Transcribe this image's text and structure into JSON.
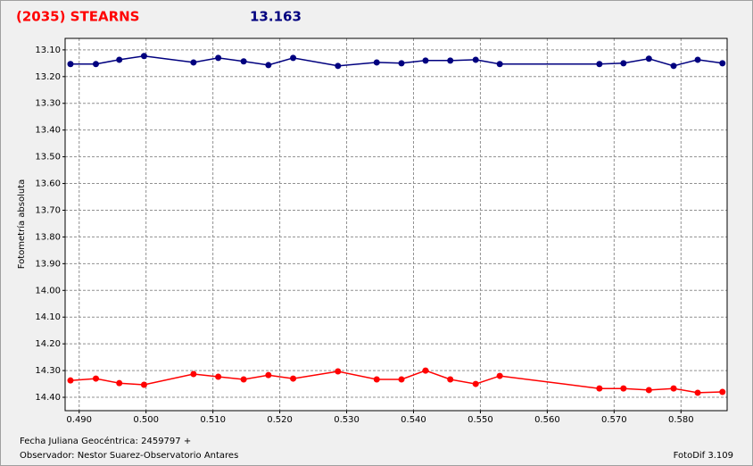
{
  "chart_data": {
    "type": "line",
    "title": "(2035) STEARNS",
    "subtitle": "13.163",
    "ylabel": "Fotometría absoluta",
    "xlabel": "Fecha Juliana Geocéntrica: 2459797 +",
    "observer": "Observador: Nestor Suarez-Observatorio Antares",
    "software": "FotoDif 3.109",
    "x": [
      0.4887,
      0.4925,
      0.496,
      0.4997,
      0.5071,
      0.5108,
      0.5146,
      0.5183,
      0.522,
      0.5287,
      0.5345,
      0.5382,
      0.5418,
      0.5455,
      0.5493,
      0.5529,
      0.5678,
      0.5714,
      0.5752,
      0.5789,
      0.5825,
      0.5862
    ],
    "series": [
      {
        "color": "#00007f",
        "values": [
          13.153,
          13.153,
          13.137,
          13.123,
          13.147,
          13.13,
          13.143,
          13.157,
          13.13,
          13.16,
          13.147,
          13.15,
          13.14,
          13.14,
          13.137,
          13.153,
          13.153,
          13.15,
          13.133,
          13.16,
          13.137,
          13.15
        ]
      },
      {
        "color": "#ff0000",
        "values": [
          14.337,
          14.33,
          14.347,
          14.353,
          14.313,
          14.323,
          14.333,
          14.317,
          14.33,
          14.303,
          14.333,
          14.333,
          14.3,
          14.333,
          14.35,
          14.32,
          14.367,
          14.367,
          14.373,
          14.367,
          14.383,
          14.38
        ]
      }
    ],
    "xlim": [
      0.4879,
      0.5869
    ],
    "ylim": [
      13.057,
      14.45
    ],
    "y_inverted": true,
    "grid": true,
    "xticks": [
      {
        "value": 0.49,
        "label": "0.490"
      },
      {
        "value": 0.5,
        "label": "0.500"
      },
      {
        "value": 0.51,
        "label": "0.510"
      },
      {
        "value": 0.52,
        "label": "0.520"
      },
      {
        "value": 0.53,
        "label": "0.530"
      },
      {
        "value": 0.54,
        "label": "0.540"
      },
      {
        "value": 0.55,
        "label": "0.550"
      },
      {
        "value": 0.56,
        "label": "0.560"
      },
      {
        "value": 0.57,
        "label": "0.570"
      },
      {
        "value": 0.58,
        "label": "0.580"
      }
    ],
    "yticks": [
      {
        "value": 13.1,
        "label": "13.10"
      },
      {
        "value": 13.2,
        "label": "13.20"
      },
      {
        "value": 13.3,
        "label": "13.30"
      },
      {
        "value": 13.4,
        "label": "13.40"
      },
      {
        "value": 13.5,
        "label": "13.50"
      },
      {
        "value": 13.6,
        "label": "13.60"
      },
      {
        "value": 13.7,
        "label": "13.70"
      },
      {
        "value": 13.8,
        "label": "13.80"
      },
      {
        "value": 13.9,
        "label": "13.90"
      },
      {
        "value": 14.0,
        "label": "14.00"
      },
      {
        "value": 14.1,
        "label": "14.10"
      },
      {
        "value": 14.2,
        "label": "14.20"
      },
      {
        "value": 14.3,
        "label": "14.30"
      },
      {
        "value": 14.4,
        "label": "14.40"
      }
    ]
  }
}
